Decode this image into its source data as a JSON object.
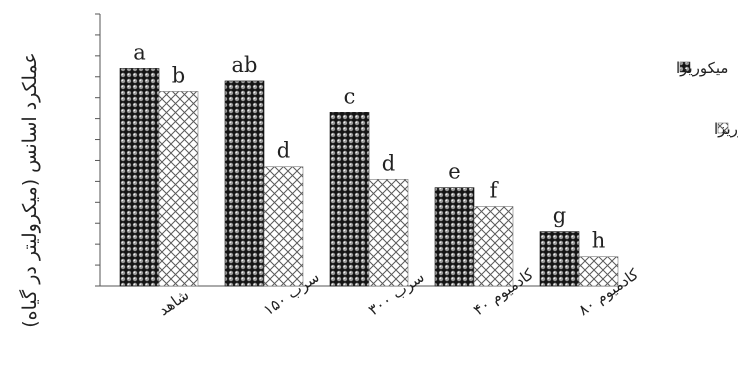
{
  "chart_data": {
    "type": "bar",
    "title": "",
    "xlabel": "",
    "ylabel": "عملکرد اسانس (میکرولیتر در گیاه)",
    "ylim": [
      0,
      13
    ],
    "grid": false,
    "legend_position": "right",
    "categories": [
      "شاهد",
      "سرب ۱۵۰",
      "سرب ۳۰۰",
      "کادمیوم ۴۰",
      "کادمیوم ۸۰"
    ],
    "series": [
      {
        "name": "میکوریزا",
        "pattern": "dark-dotted",
        "color": "#1a1a1a",
        "values": [
          10.4,
          9.8,
          8.3,
          4.7,
          2.6
        ],
        "labels": [
          "a",
          "ab",
          "c",
          "e",
          "g"
        ]
      },
      {
        "name": "غیرمیکوریزا",
        "pattern": "crosshatch",
        "color": "#d9d9d9",
        "values": [
          9.3,
          5.7,
          5.1,
          3.8,
          1.4
        ],
        "labels": [
          "b",
          "d",
          "d",
          "f",
          "h"
        ]
      }
    ]
  }
}
